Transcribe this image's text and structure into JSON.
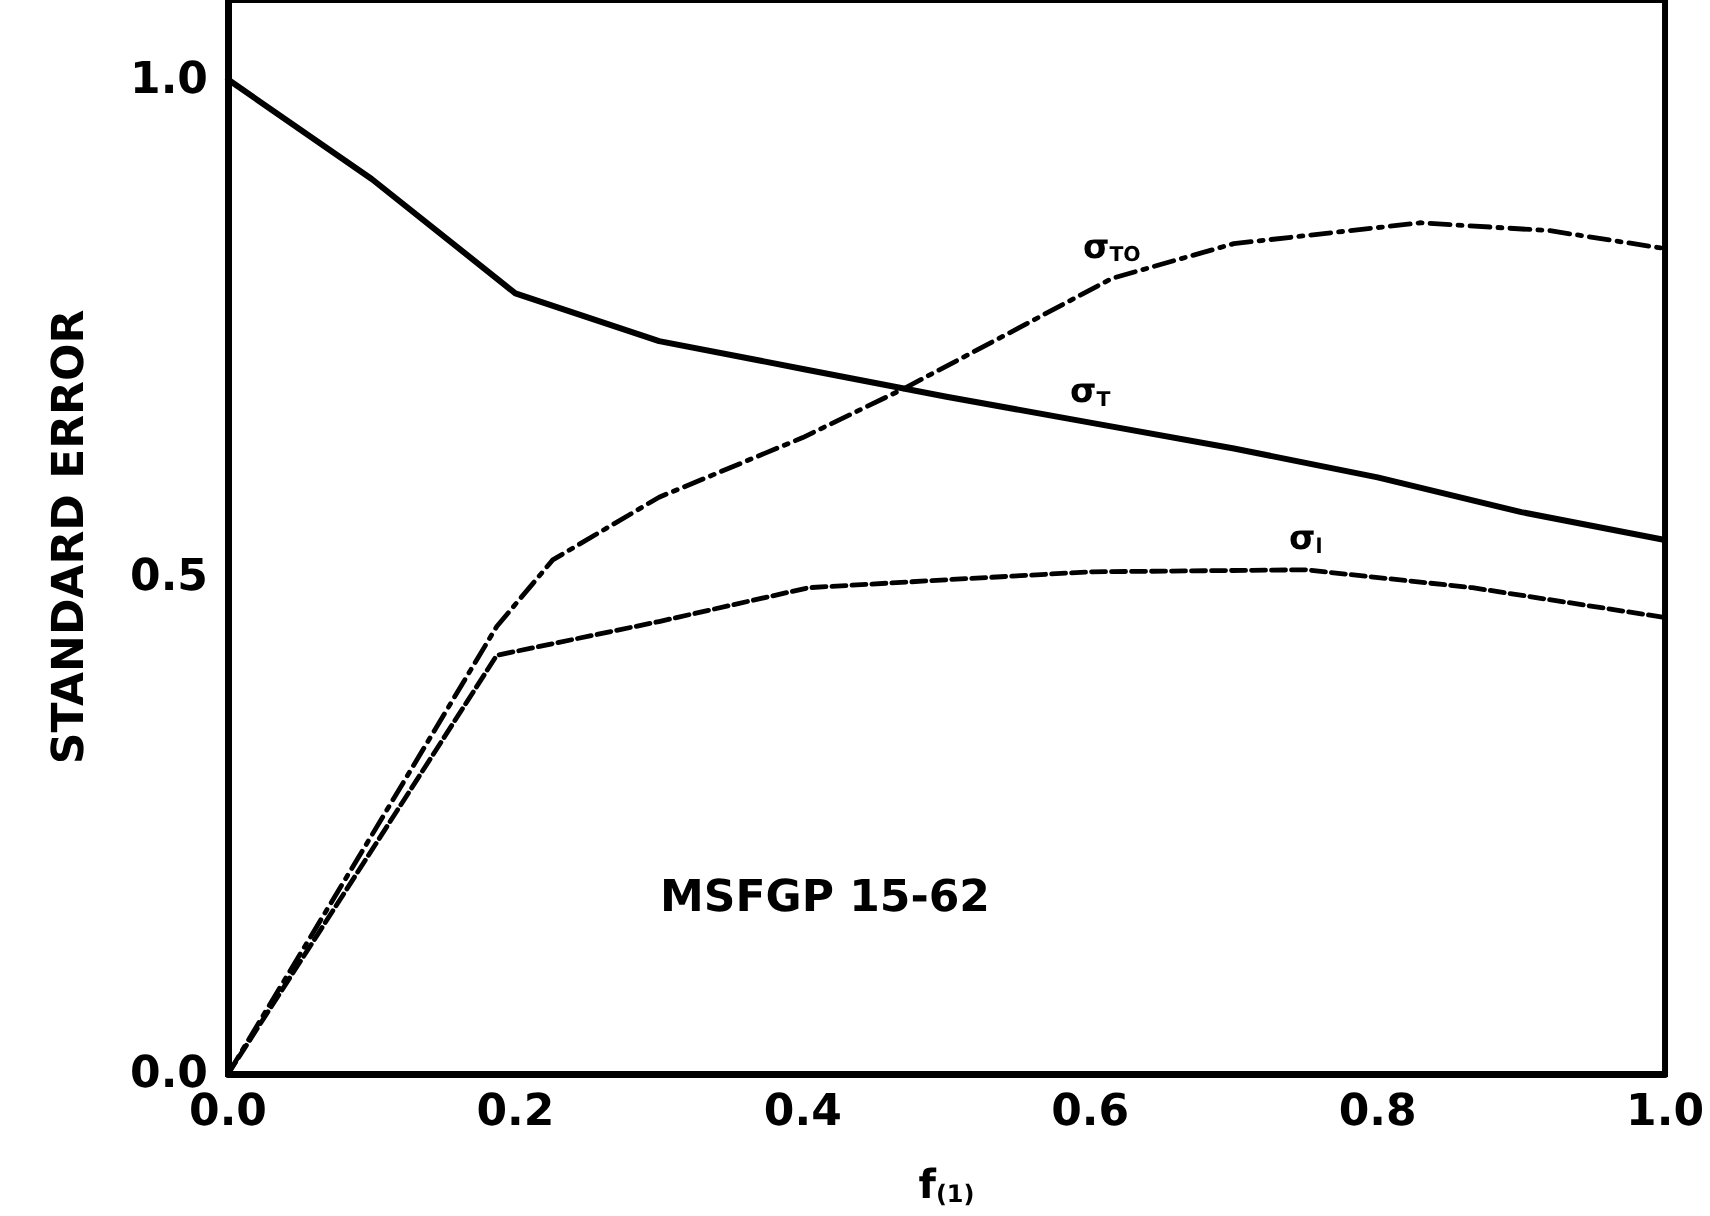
{
  "chart_data": {
    "type": "line",
    "xlabel": "f$_{(1)}$",
    "ylabel": "STANDARD ERROR",
    "x": [
      0,
      0.1,
      0.2,
      0.3,
      0.4,
      0.5,
      0.6,
      0.7,
      0.8,
      0.9,
      1.0
    ],
    "series": [
      {
        "name": "σ$_{T}$",
        "color": "#000000",
        "line_style": "solid",
        "values": [
          1.0,
          0.9,
          0.785,
          0.737,
          0.709,
          0.681,
          0.655,
          0.629,
          0.6,
          0.565,
          0.537
        ]
      },
      {
        "name": "σ$_{TO}$",
        "color": "#000000",
        "line_style": "dashed",
        "x": [
          0,
          0.1,
          0.187,
          0.226,
          0.3,
          0.4,
          0.47,
          0.55,
          0.615,
          0.7,
          0.83,
          0.92,
          1.0
        ],
        "values": [
          0,
          0.24,
          0.45,
          0.517,
          0.58,
          0.64,
          0.689,
          0.75,
          0.8,
          0.835,
          0.856,
          0.848,
          0.83
        ]
      },
      {
        "name": "σ$_{l}$",
        "color": "#000000",
        "line_style": "dashed",
        "x": [
          0,
          0.1,
          0.187,
          0.3,
          0.404,
          0.5,
          0.6,
          0.75,
          0.866,
          1.0
        ],
        "values": [
          0,
          0.225,
          0.421,
          0.455,
          0.489,
          0.497,
          0.505,
          0.507,
          0.489,
          0.459
        ]
      }
    ],
    "xlim": [
      0,
      1.0
    ],
    "ylim": [
      0,
      1.08
    ],
    "xticks": [
      {
        "value": 0,
        "label": "0.0"
      },
      {
        "value": 0.2,
        "label": "0.2"
      },
      {
        "value": 0.4,
        "label": "0.4"
      },
      {
        "value": 0.6,
        "label": "0.6"
      },
      {
        "value": 0.8,
        "label": "0.8"
      },
      {
        "value": 1.0,
        "label": "1.0"
      }
    ],
    "yticks": [
      {
        "value": 0,
        "label": "0.0"
      },
      {
        "value": 0.5,
        "label": "0.5"
      },
      {
        "value": 1.0,
        "label": "1.0"
      }
    ],
    "annotations": [
      "MSFGP 15-62"
    ],
    "grid": false,
    "legend": false,
    "marker": "none"
  }
}
